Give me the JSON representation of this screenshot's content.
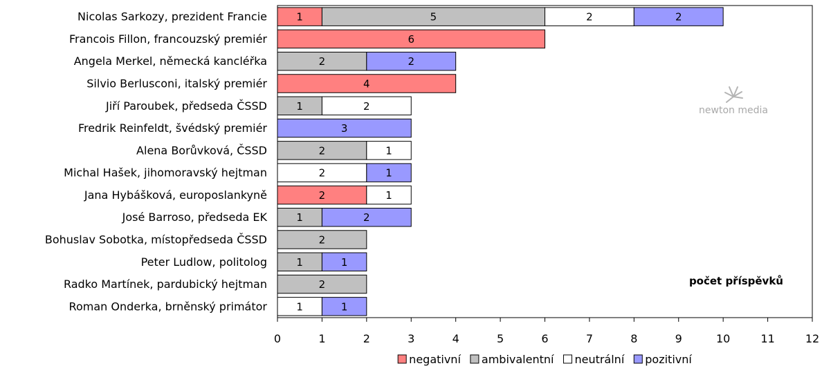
{
  "chart_data": {
    "type": "bar",
    "orientation": "horizontal",
    "stacked": true,
    "categories": [
      "Nicolas Sarkozy, prezident Francie",
      "Francois Fillon, francouzský premiér",
      "Angela Merkel, německá kancléřka",
      "Silvio Berlusconi, italský premiér",
      "Jiří Paroubek, předseda ČSSD",
      "Fredrik Reinfeldt, švédský premiér",
      "Alena Borůvková, ČSSD",
      "Michal Hašek, jihomoravský hejtman",
      "Jana Hybášková, europoslankyně",
      "José Barroso, předseda EK",
      "Bohuslav Sobotka, místopředseda ČSSD",
      "Peter Ludlow, politolog",
      "Radko Martínek, pardubický hejtman",
      "Roman Onderka, brněnský primátor"
    ],
    "series": [
      {
        "name": "negativní",
        "color": "#ff8080",
        "values": [
          1,
          6,
          0,
          4,
          0,
          0,
          0,
          0,
          2,
          0,
          0,
          0,
          0,
          0
        ]
      },
      {
        "name": "ambivalentní",
        "color": "#c0c0c0",
        "values": [
          5,
          0,
          2,
          0,
          1,
          0,
          2,
          0,
          0,
          1,
          2,
          1,
          2,
          0
        ]
      },
      {
        "name": "neutrální",
        "color": "#ffffff",
        "values": [
          2,
          0,
          0,
          0,
          2,
          0,
          1,
          2,
          1,
          0,
          0,
          0,
          0,
          1
        ]
      },
      {
        "name": "pozitivní",
        "color": "#9999ff",
        "values": [
          2,
          0,
          2,
          0,
          0,
          3,
          0,
          1,
          0,
          2,
          0,
          1,
          0,
          1
        ]
      }
    ],
    "xlim": [
      0,
      12
    ],
    "xticks": [
      0,
      1,
      2,
      3,
      4,
      5,
      6,
      7,
      8,
      9,
      10,
      11,
      12
    ],
    "annotation": "počet příspěvků",
    "grid": false,
    "legend_position": "bottom"
  },
  "watermark": {
    "text": "newton media"
  }
}
